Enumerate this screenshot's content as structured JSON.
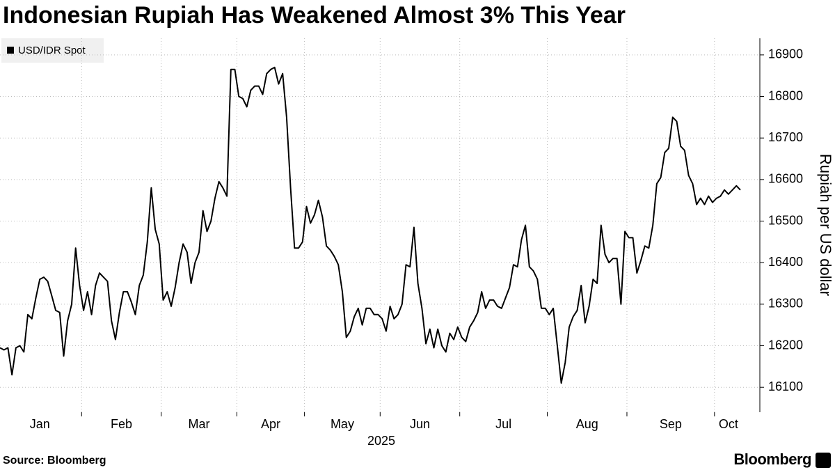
{
  "chart_data": {
    "type": "line",
    "title": "Indonesian Rupiah Has Weakened Almost 3% This Year",
    "categories": [
      "Jan",
      "Feb",
      "Mar",
      "Apr",
      "May",
      "Jun",
      "Jul",
      "Aug",
      "Sep",
      "Oct"
    ],
    "x_label": "2025",
    "y_label": "Rupiah per US dollar",
    "series": [
      {
        "name": "USD/IDR Spot",
        "color": "#000000",
        "values": [
          [
            16195,
            16190,
            16195,
            16130,
            16195,
            16200,
            16185,
            16275,
            16265,
            16315,
            16360,
            16365,
            16355,
            16320,
            16285,
            16280,
            16175,
            16260,
            16300,
            16435,
            16345
          ],
          [
            16285,
            16330,
            16275,
            16345,
            16375,
            16365,
            16355,
            16260,
            16215,
            16280,
            16330,
            16330,
            16305,
            16275,
            16345,
            16370,
            16450,
            16580,
            16480,
            16445
          ],
          [
            16310,
            16330,
            16295,
            16340,
            16400,
            16445,
            16425,
            16350,
            16400,
            16425,
            16525,
            16475,
            16500,
            16555,
            16595,
            16580,
            16560,
            16865,
            16865
          ],
          [
            16800,
            16795,
            16775,
            16815,
            16825,
            16825,
            16805,
            16855,
            16865,
            16870,
            16830,
            16855,
            16750,
            16580,
            16435,
            16435,
            16450
          ],
          [
            16535,
            16495,
            16515,
            16550,
            16510,
            16440,
            16430,
            16415,
            16395,
            16330,
            16220,
            16235,
            16270,
            16290,
            16250,
            16290,
            16290,
            16275,
            16275
          ],
          [
            16265,
            16235,
            16295,
            16265,
            16275,
            16300,
            16395,
            16390,
            16485,
            16350,
            16290,
            16205,
            16240,
            16195,
            16240,
            16200,
            16185,
            16230,
            16215,
            16245
          ],
          [
            16220,
            16210,
            16245,
            16260,
            16280,
            16330,
            16290,
            16310,
            16310,
            16295,
            16290,
            16315,
            16340,
            16395,
            16390,
            16455,
            16490,
            16390,
            16380,
            16360,
            16290,
            16290
          ],
          [
            16275,
            16290,
            16200,
            16110,
            16160,
            16245,
            16270,
            16285,
            16345,
            16255,
            16295,
            16360,
            16350,
            16490,
            16420,
            16400,
            16410,
            16410,
            16300,
            16475
          ],
          [
            16460,
            16460,
            16375,
            16405,
            16440,
            16435,
            16490,
            16590,
            16605,
            16665,
            16675,
            16750,
            16740,
            16680,
            16670,
            16610,
            16590,
            16540,
            16555,
            16540,
            16560,
            16545
          ],
          [
            16555,
            16560,
            16575,
            16565,
            16575,
            16585,
            16575
          ]
        ]
      }
    ],
    "ylim": [
      16040,
      16940
    ],
    "yticks": [
      16100,
      16200,
      16300,
      16400,
      16500,
      16600,
      16700,
      16800,
      16900
    ],
    "grid": true,
    "legend": "top-left",
    "source": "Source: Bloomberg",
    "brand": "Bloomberg"
  }
}
